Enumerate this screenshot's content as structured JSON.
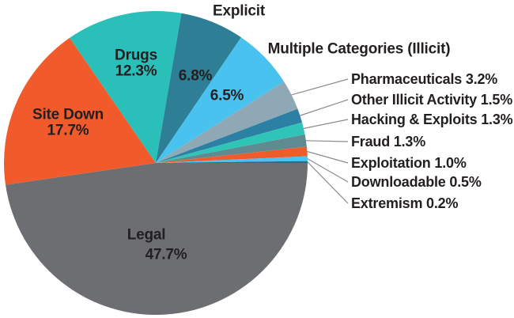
{
  "chart_data": {
    "type": "pie",
    "title": "",
    "direction": "clockwise",
    "start_angle_deg_clockwise_from_top": 90,
    "legend_position": "right-callouts",
    "slices": [
      {
        "label": "Legal",
        "value": 47.7,
        "pct_label": "47.7%",
        "color": "#6d6e71"
      },
      {
        "label": "Site Down",
        "value": 17.7,
        "pct_label": "17.7%",
        "color": "#f15b2b"
      },
      {
        "label": "Drugs",
        "value": 12.3,
        "pct_label": "12.3%",
        "color": "#2abfb8"
      },
      {
        "label": "Explicit",
        "value": 6.8,
        "pct_label": "6.8%",
        "color": "#2e7e95"
      },
      {
        "label": "Multiple Categories (Illicit)",
        "value": 6.5,
        "pct_label": "6.5%",
        "color": "#4ac2f0"
      },
      {
        "label": "Pharmaceuticals",
        "value": 3.2,
        "pct_label": "3.2%",
        "color": "#8ea8b5"
      },
      {
        "label": "Other Illicit Activity",
        "value": 1.5,
        "pct_label": "1.5%",
        "color": "#2c80a3"
      },
      {
        "label": "Hacking & Exploits",
        "value": 1.3,
        "pct_label": "1.3%",
        "color": "#2fc4b8"
      },
      {
        "label": "Fraud",
        "value": 1.3,
        "pct_label": "1.3%",
        "color": "#5f8b90"
      },
      {
        "label": "Exploitation",
        "value": 1.0,
        "pct_label": "1.0%",
        "color": "#f15b2b"
      },
      {
        "label": "Downloadable",
        "value": 0.5,
        "pct_label": "0.5%",
        "color": "#47c4f2"
      },
      {
        "label": "Extremism",
        "value": 0.2,
        "pct_label": "0.2%",
        "color": "#20708a"
      }
    ]
  },
  "labels": {
    "explicit": "Explicit",
    "explicit_pct": "6.8%",
    "multiple": "Multiple Categories (Illicit)",
    "multiple_pct": "6.5%",
    "drugs": "Drugs",
    "drugs_pct": "12.3%",
    "site_down": "Site Down",
    "site_down_pct": "17.7%",
    "legal": "Legal",
    "legal_pct": "47.7%",
    "callouts": [
      {
        "text": "Pharmaceuticals 3.2%",
        "slice": 5
      },
      {
        "text": "Other Illicit Activity 1.5%",
        "slice": 6
      },
      {
        "text": "Hacking & Exploits 1.3%",
        "slice": 7
      },
      {
        "text": "Fraud 1.3%",
        "slice": 8
      },
      {
        "text": "Exploitation 1.0%",
        "slice": 9
      },
      {
        "text": "Downloadable 0.5%",
        "slice": 10
      },
      {
        "text": "Extremism 0.2%",
        "slice": 11
      }
    ]
  },
  "style": {
    "background": "#ffffff",
    "text_color": "#231f20",
    "leader_line_color": "#8c8c8c"
  }
}
